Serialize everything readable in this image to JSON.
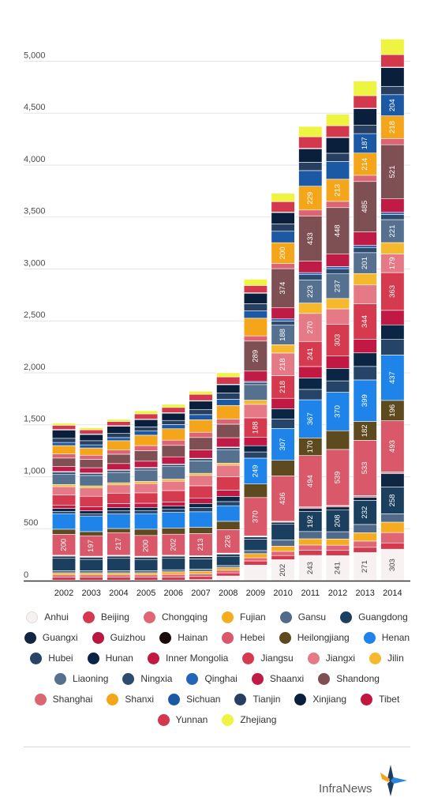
{
  "chart_data": {
    "type": "stacked-bar",
    "title": "",
    "xlabel": "",
    "ylabel": "",
    "ylim": [
      0,
      5300
    ],
    "yticks": [
      0,
      500,
      1000,
      1500,
      2000,
      2500,
      3000,
      3500,
      4000,
      4500,
      5000
    ],
    "ytick_labels": [
      "0",
      "500",
      "1,000",
      "1,500",
      "2,000",
      "2,500",
      "3,000",
      "3,500",
      "4,000",
      "4,500",
      "5,000"
    ],
    "grid": true,
    "legend_position": "bottom",
    "categories": [
      "2002",
      "2003",
      "2004",
      "2005",
      "2006",
      "2007",
      "2008",
      "2009",
      "2010",
      "2011",
      "2012",
      "2013",
      "2014"
    ],
    "series": [
      {
        "name": "Anhui",
        "color": "#f7f1f1",
        "values": [
          5,
          5,
          5,
          5,
          5,
          10,
          45,
          150,
          202,
          243,
          241,
          271,
          303
        ]
      },
      {
        "name": "Beijing",
        "color": "#d6394d",
        "values": [
          30,
          30,
          30,
          30,
          30,
          30,
          30,
          40,
          40,
          50,
          50,
          50,
          60
        ]
      },
      {
        "name": "Chongqing",
        "color": "#e06675",
        "values": [
          20,
          20,
          20,
          20,
          25,
          25,
          25,
          30,
          40,
          50,
          50,
          60,
          100
        ]
      },
      {
        "name": "Fujian",
        "color": "#f5ac20",
        "values": [
          20,
          20,
          20,
          20,
          25,
          25,
          25,
          40,
          50,
          60,
          60,
          80,
          100
        ]
      },
      {
        "name": "Gansu",
        "color": "#4f6a8a",
        "values": [
          20,
          20,
          20,
          20,
          20,
          20,
          20,
          30,
          60,
          70,
          70,
          80,
          80
        ]
      },
      {
        "name": "Guangdong",
        "color": "#1b3f5e",
        "values": [
          120,
          110,
          120,
          110,
          110,
          100,
          90,
          110,
          150,
          192,
          208,
          232,
          258
        ]
      },
      {
        "name": "Guangxi",
        "color": "#0f2743",
        "values": [
          20,
          20,
          20,
          20,
          20,
          20,
          20,
          20,
          20,
          30,
          30,
          30,
          130
        ]
      },
      {
        "name": "Guizhou",
        "color": "#b81740",
        "values": [
          5,
          5,
          5,
          5,
          5,
          5,
          5,
          5,
          5,
          10,
          10,
          10,
          10
        ]
      },
      {
        "name": "Hainan",
        "color": "#1a0c0c",
        "values": [
          5,
          5,
          5,
          5,
          5,
          5,
          5,
          5,
          5,
          5,
          5,
          5,
          5
        ]
      },
      {
        "name": "Hebei",
        "color": "#d9586a",
        "values": [
          200,
          197,
          217,
          200,
          202,
          213,
          226,
          370,
          436,
          494,
          539,
          533,
          493
        ]
      },
      {
        "name": "Heilongjiang",
        "color": "#5d4a1e",
        "values": [
          50,
          40,
          40,
          60,
          60,
          60,
          80,
          130,
          150,
          170,
          180,
          182,
          196
        ]
      },
      {
        "name": "Henan",
        "color": "#1e84e9",
        "values": [
          150,
          150,
          140,
          150,
          150,
          150,
          150,
          249,
          307,
          367,
          370,
          399,
          437
        ]
      },
      {
        "name": "Hubei",
        "color": "#254468",
        "values": [
          20,
          20,
          30,
          30,
          30,
          40,
          40,
          60,
          90,
          100,
          110,
          130,
          150
        ]
      },
      {
        "name": "Hunan",
        "color": "#0b2545",
        "values": [
          30,
          30,
          30,
          30,
          30,
          40,
          50,
          60,
          100,
          110,
          120,
          130,
          140
        ]
      },
      {
        "name": "Inner Mongolia",
        "color": "#c21944",
        "values": [
          30,
          40,
          40,
          40,
          40,
          50,
          60,
          80,
          100,
          110,
          120,
          130,
          140
        ]
      },
      {
        "name": "Jiangsu",
        "color": "#d53a4f",
        "values": [
          100,
          100,
          100,
          100,
          110,
          120,
          130,
          188,
          218,
          241,
          303,
          344,
          363
        ]
      },
      {
        "name": "Jiangxi",
        "color": "#e57a86",
        "values": [
          80,
          80,
          80,
          90,
          90,
          100,
          110,
          130,
          218,
          270,
          150,
          180,
          179
        ]
      },
      {
        "name": "Jilin",
        "color": "#f6b82c",
        "values": [
          20,
          20,
          20,
          20,
          20,
          20,
          20,
          40,
          80,
          100,
          100,
          110,
          110
        ]
      },
      {
        "name": "Liaoning",
        "color": "#56708f",
        "values": [
          100,
          100,
          100,
          110,
          120,
          120,
          130,
          150,
          188,
          223,
          237,
          201,
          221
        ]
      },
      {
        "name": "Ningxia",
        "color": "#2b4c6e",
        "values": [
          20,
          20,
          20,
          20,
          20,
          20,
          20,
          20,
          40,
          50,
          50,
          50,
          50
        ]
      },
      {
        "name": "Qinghai",
        "color": "#2365b8",
        "values": [
          5,
          5,
          5,
          5,
          5,
          5,
          5,
          10,
          20,
          20,
          20,
          20,
          20
        ]
      },
      {
        "name": "Shaanxi",
        "color": "#c01b46",
        "values": [
          50,
          50,
          60,
          60,
          70,
          80,
          90,
          100,
          110,
          110,
          120,
          130,
          130
        ]
      },
      {
        "name": "Shandong",
        "color": "#7f5053",
        "values": [
          80,
          80,
          90,
          100,
          110,
          120,
          130,
          289,
          374,
          433,
          448,
          485,
          521
        ]
      },
      {
        "name": "Shanghai",
        "color": "#dd6573",
        "values": [
          40,
          40,
          40,
          50,
          50,
          50,
          50,
          50,
          50,
          60,
          60,
          60,
          60
        ]
      },
      {
        "name": "Shanxi",
        "color": "#f5a519",
        "values": [
          80,
          70,
          90,
          100,
          110,
          120,
          130,
          170,
          200,
          229,
          213,
          214,
          218
        ]
      },
      {
        "name": "Sichuan",
        "color": "#1c59a5",
        "values": [
          30,
          30,
          30,
          40,
          40,
          50,
          60,
          70,
          110,
          150,
          170,
          187,
          204
        ]
      },
      {
        "name": "Tianjin",
        "color": "#273f61",
        "values": [
          40,
          40,
          40,
          40,
          40,
          50,
          60,
          70,
          70,
          80,
          80,
          80,
          80
        ]
      },
      {
        "name": "Xinjiang",
        "color": "#0a1f3b",
        "values": [
          80,
          60,
          70,
          70,
          70,
          80,
          80,
          100,
          110,
          130,
          150,
          160,
          180
        ]
      },
      {
        "name": "Tibet",
        "color": "#c2163f",
        "values": [
          5,
          5,
          5,
          5,
          5,
          5,
          5,
          5,
          5,
          5,
          5,
          5,
          5
        ]
      },
      {
        "name": "Yunnan",
        "color": "#d3384c",
        "values": [
          40,
          40,
          40,
          50,
          50,
          60,
          70,
          70,
          100,
          110,
          110,
          120,
          120
        ]
      },
      {
        "name": "Zhejiang",
        "color": "#eef540",
        "values": [
          20,
          20,
          20,
          30,
          30,
          30,
          40,
          60,
          80,
          100,
          110,
          140,
          150
        ]
      }
    ],
    "value_labels": {
      "Anhui": [
        0,
        0,
        0,
        0,
        0,
        0,
        0,
        0,
        1,
        1,
        1,
        1,
        1
      ],
      "Guangdong": [
        0,
        0,
        0,
        0,
        0,
        0,
        0,
        0,
        0,
        1,
        1,
        1,
        1
      ],
      "Hebei": [
        1,
        1,
        1,
        1,
        1,
        1,
        1,
        1,
        1,
        1,
        1,
        1,
        1
      ],
      "Heilongjiang": [
        0,
        0,
        0,
        0,
        0,
        0,
        0,
        0,
        0,
        1,
        0,
        1,
        1
      ],
      "Henan": [
        0,
        0,
        0,
        0,
        0,
        0,
        0,
        1,
        1,
        1,
        1,
        1,
        1
      ],
      "Jiangsu": [
        0,
        0,
        0,
        0,
        0,
        0,
        0,
        1,
        1,
        1,
        1,
        1,
        1
      ],
      "Jiangxi": [
        0,
        0,
        0,
        0,
        0,
        0,
        0,
        0,
        1,
        1,
        0,
        0,
        1
      ],
      "Liaoning": [
        0,
        0,
        0,
        0,
        0,
        0,
        0,
        0,
        1,
        1,
        1,
        1,
        1
      ],
      "Shandong": [
        0,
        0,
        0,
        0,
        0,
        0,
        0,
        1,
        1,
        1,
        1,
        1,
        1
      ],
      "Shanxi": [
        0,
        0,
        0,
        0,
        0,
        0,
        0,
        0,
        1,
        1,
        1,
        1,
        1
      ],
      "Sichuan": [
        0,
        0,
        0,
        0,
        0,
        0,
        0,
        0,
        0,
        0,
        0,
        1,
        1
      ]
    }
  },
  "legend_rows": [
    [
      "Anhui",
      "Beijing",
      "Chongqing",
      "Fujian",
      "Gansu",
      "Guangdong"
    ],
    [
      "Guangxi",
      "Guizhou",
      "Hainan",
      "Hebei",
      "Heilongjiang",
      "Henan"
    ],
    [
      "Hubei",
      "Hunan",
      "Inner Mongolia",
      "Jiangsu",
      "Jiangxi",
      "Jilin"
    ],
    [
      "Liaoning",
      "Ningxia",
      "Qinghai",
      "Shaanxi",
      "Shandong"
    ],
    [
      "Shanghai",
      "Shanxi",
      "Sichuan",
      "Tianjin",
      "Xinjiang",
      "Tibet"
    ],
    [
      "Yunnan",
      "Zhejiang"
    ]
  ],
  "branding": {
    "logo_text": "InfraNews",
    "logo_colors": [
      "#1d3c63",
      "#f5a519",
      "#2a86e0"
    ]
  }
}
